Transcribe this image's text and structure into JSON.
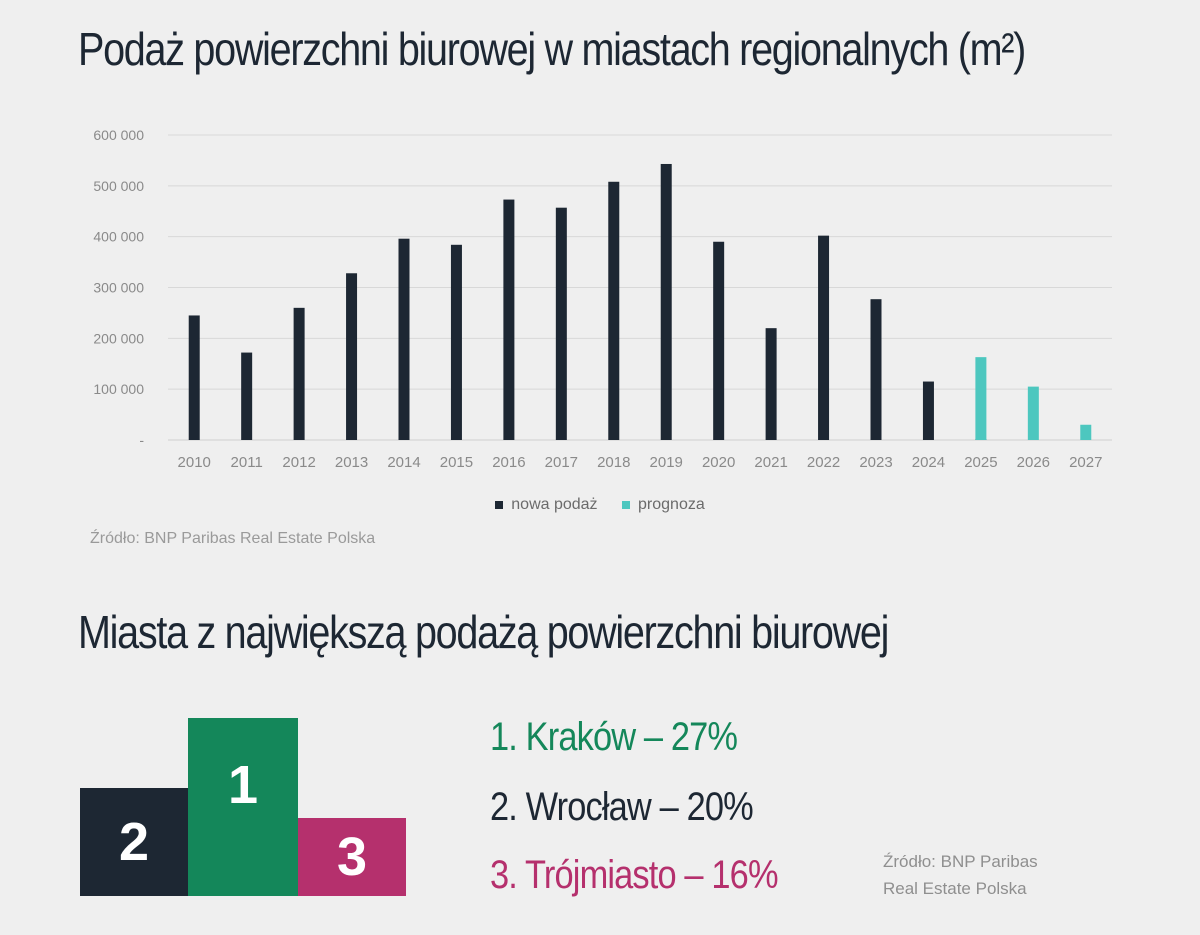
{
  "colors": {
    "navy": "#1d2733",
    "teal": "#4dc7bf",
    "green": "#14875a",
    "magenta": "#b5306d",
    "grid": "#d8d8d8",
    "tick": "#8a8a8a"
  },
  "titles": {
    "chart": "Podaż powierzchni biurowej w miastach regionalnych (m²)",
    "podium": "Miasta z największą podażą powierzchni biurowej"
  },
  "chart_data": {
    "type": "bar",
    "categories": [
      "2010",
      "2011",
      "2012",
      "2013",
      "2014",
      "2015",
      "2016",
      "2017",
      "2018",
      "2019",
      "2020",
      "2021",
      "2022",
      "2023",
      "2024",
      "2025",
      "2026",
      "2027"
    ],
    "series": [
      {
        "name": "nowa podaż",
        "color": "#1d2733",
        "values": [
          245000,
          172000,
          260000,
          328000,
          396000,
          384000,
          473000,
          457000,
          508000,
          543000,
          390000,
          220000,
          402000,
          277000,
          115000,
          2000,
          null,
          null
        ]
      },
      {
        "name": "prognoza",
        "color": "#4dc7bf",
        "values": [
          null,
          null,
          null,
          null,
          null,
          null,
          null,
          null,
          null,
          null,
          null,
          null,
          null,
          null,
          null,
          163000,
          105000,
          30000
        ]
      }
    ],
    "ylim": [
      0,
      600000
    ],
    "yticks": [
      "-",
      "100 000",
      "200 000",
      "300 000",
      "400 000",
      "500 000",
      "600 000"
    ],
    "grid": true,
    "legend": "bottom"
  },
  "legend": {
    "items": [
      {
        "label": "nowa podaż"
      },
      {
        "label": "prognoza"
      }
    ]
  },
  "source1": "Źródło: BNP Paribas Real Estate Polska",
  "podium": {
    "first": "1",
    "second": "2",
    "third": "3"
  },
  "ranking": [
    {
      "text": "1. Kraków – 27%"
    },
    {
      "text": "2. Wrocław – 20%"
    },
    {
      "text": "3. Trójmiasto – 16%"
    }
  ],
  "source2": {
    "line1": "Źródło: BNP Paribas",
    "line2": "Real Estate Polska"
  }
}
